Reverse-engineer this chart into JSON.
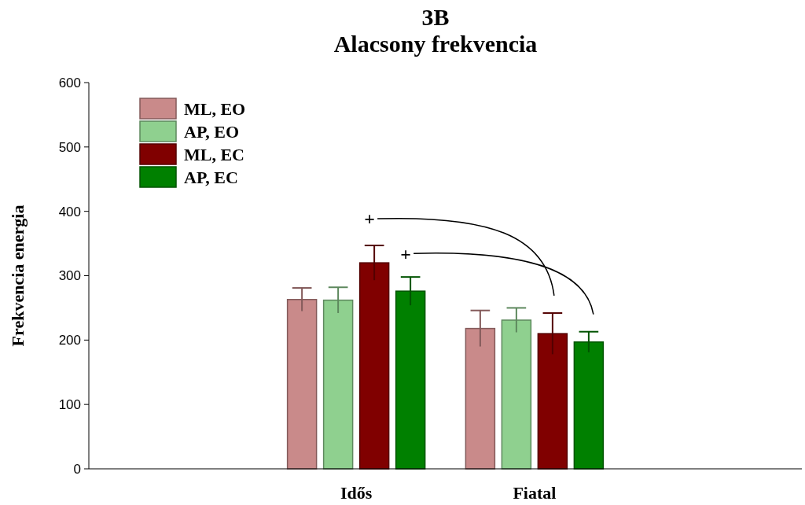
{
  "chart_data": {
    "type": "bar",
    "title": "3B\nAlacsony frekvencia",
    "ylabel": "Frekvencia energia",
    "categories": [
      "Idős",
      "Fiatal"
    ],
    "series": [
      {
        "name": "ML, EO",
        "color": "#c98a8a",
        "values": [
          263,
          218
        ],
        "errors": [
          18,
          28
        ]
      },
      {
        "name": "AP, EO",
        "color": "#8fd08f",
        "values": [
          262,
          231
        ],
        "errors": [
          20,
          19
        ]
      },
      {
        "name": "ML, EC",
        "color": "#800000",
        "values": [
          320,
          210
        ],
        "errors": [
          27,
          32
        ]
      },
      {
        "name": "AP, EC",
        "color": "#008000",
        "values": [
          276,
          197
        ],
        "errors": [
          22,
          16
        ]
      }
    ],
    "ylim": [
      0,
      600
    ],
    "yticks": [
      0,
      100,
      200,
      300,
      400,
      500,
      600
    ],
    "annotations": [
      "+",
      "+"
    ],
    "legend": "top left",
    "grid": false
  }
}
